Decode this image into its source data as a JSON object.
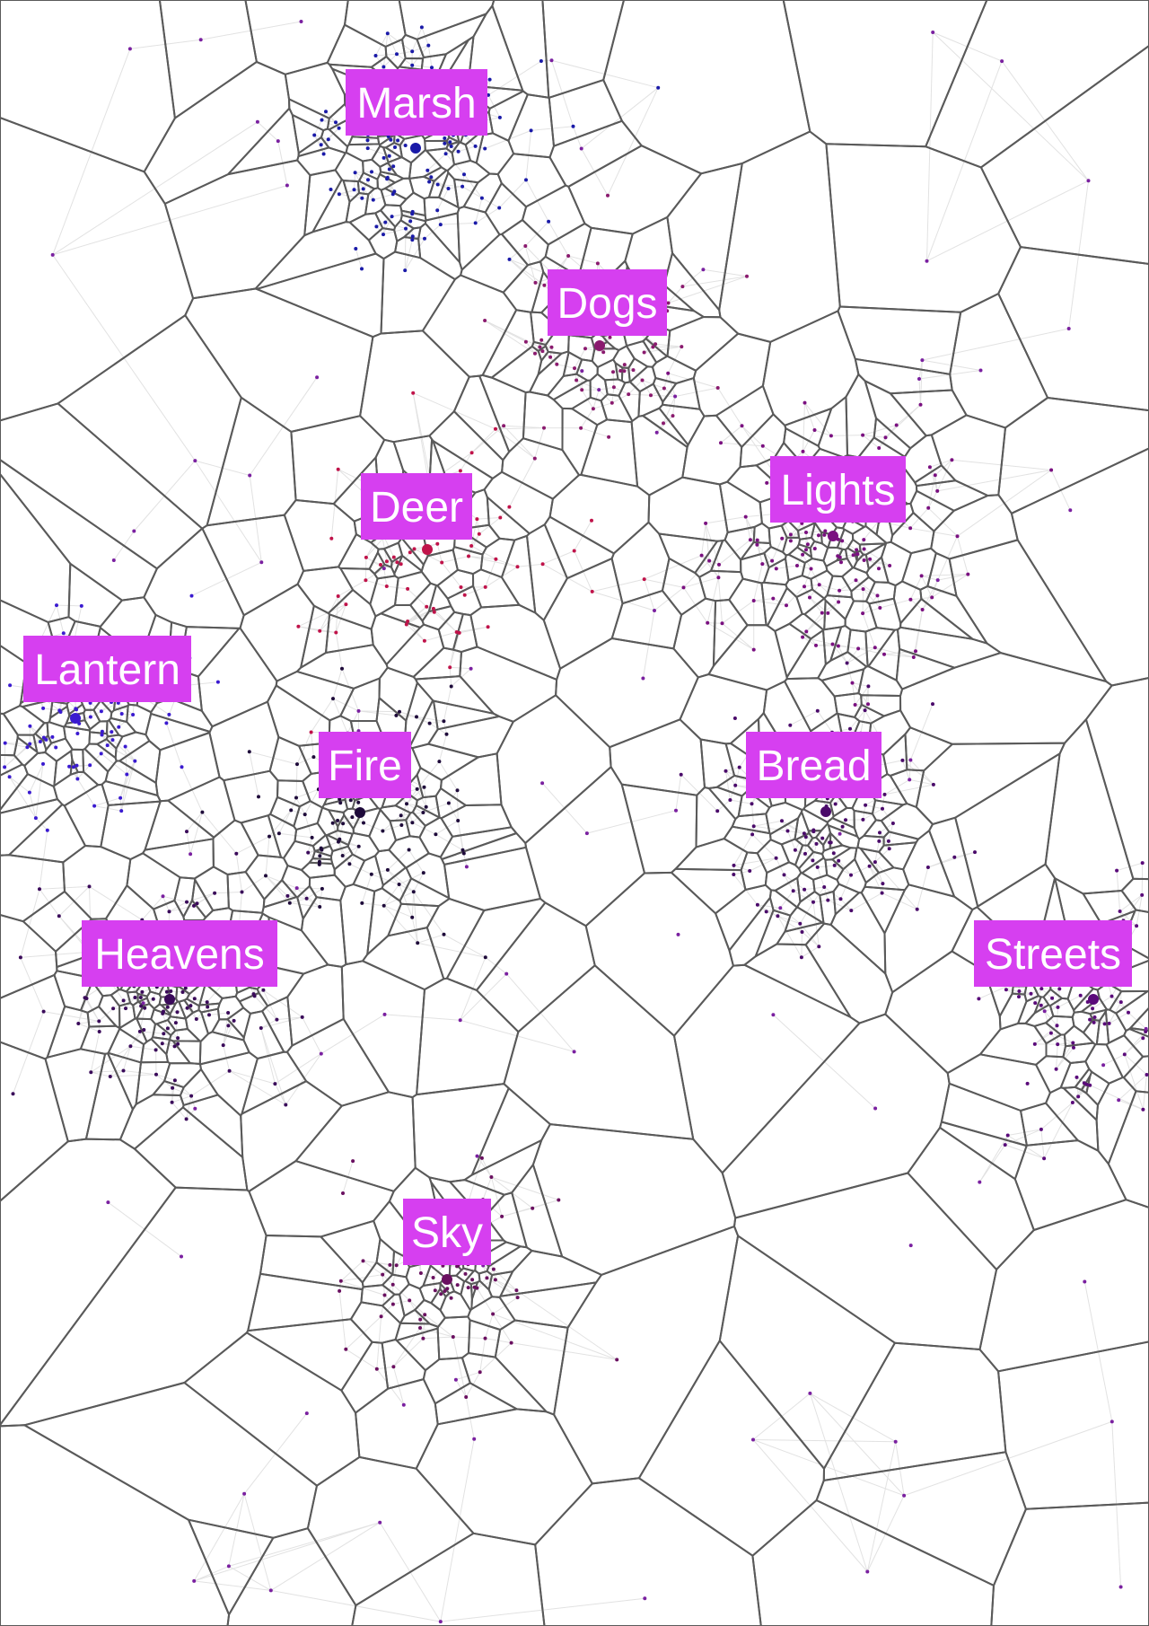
{
  "labels": [
    {
      "id": "marsh",
      "text": "Marsh",
      "color": "#1a1aa8"
    },
    {
      "id": "dogs",
      "text": "Dogs",
      "color": "#8a1a6e"
    },
    {
      "id": "deer",
      "text": "Deer",
      "color": "#c0134a"
    },
    {
      "id": "lights",
      "text": "Lights",
      "color": "#7a1080"
    },
    {
      "id": "lantern",
      "text": "Lantern",
      "color": "#3a1ad0"
    },
    {
      "id": "fire",
      "text": "Fire",
      "color": "#1e0a3a"
    },
    {
      "id": "bread",
      "text": "Bread",
      "color": "#4a0a6a"
    },
    {
      "id": "heavens",
      "text": "Heavens",
      "color": "#3a0a5a"
    },
    {
      "id": "streets",
      "text": "Streets",
      "color": "#5a0a7a"
    },
    {
      "id": "sky",
      "text": "Sky",
      "color": "#6a1060"
    }
  ],
  "style": {
    "label_bg": "#d63ff0",
    "label_text": "#ffffff",
    "cell_edge": "#5a5a5a",
    "triangulation": "#e2e2e2"
  }
}
